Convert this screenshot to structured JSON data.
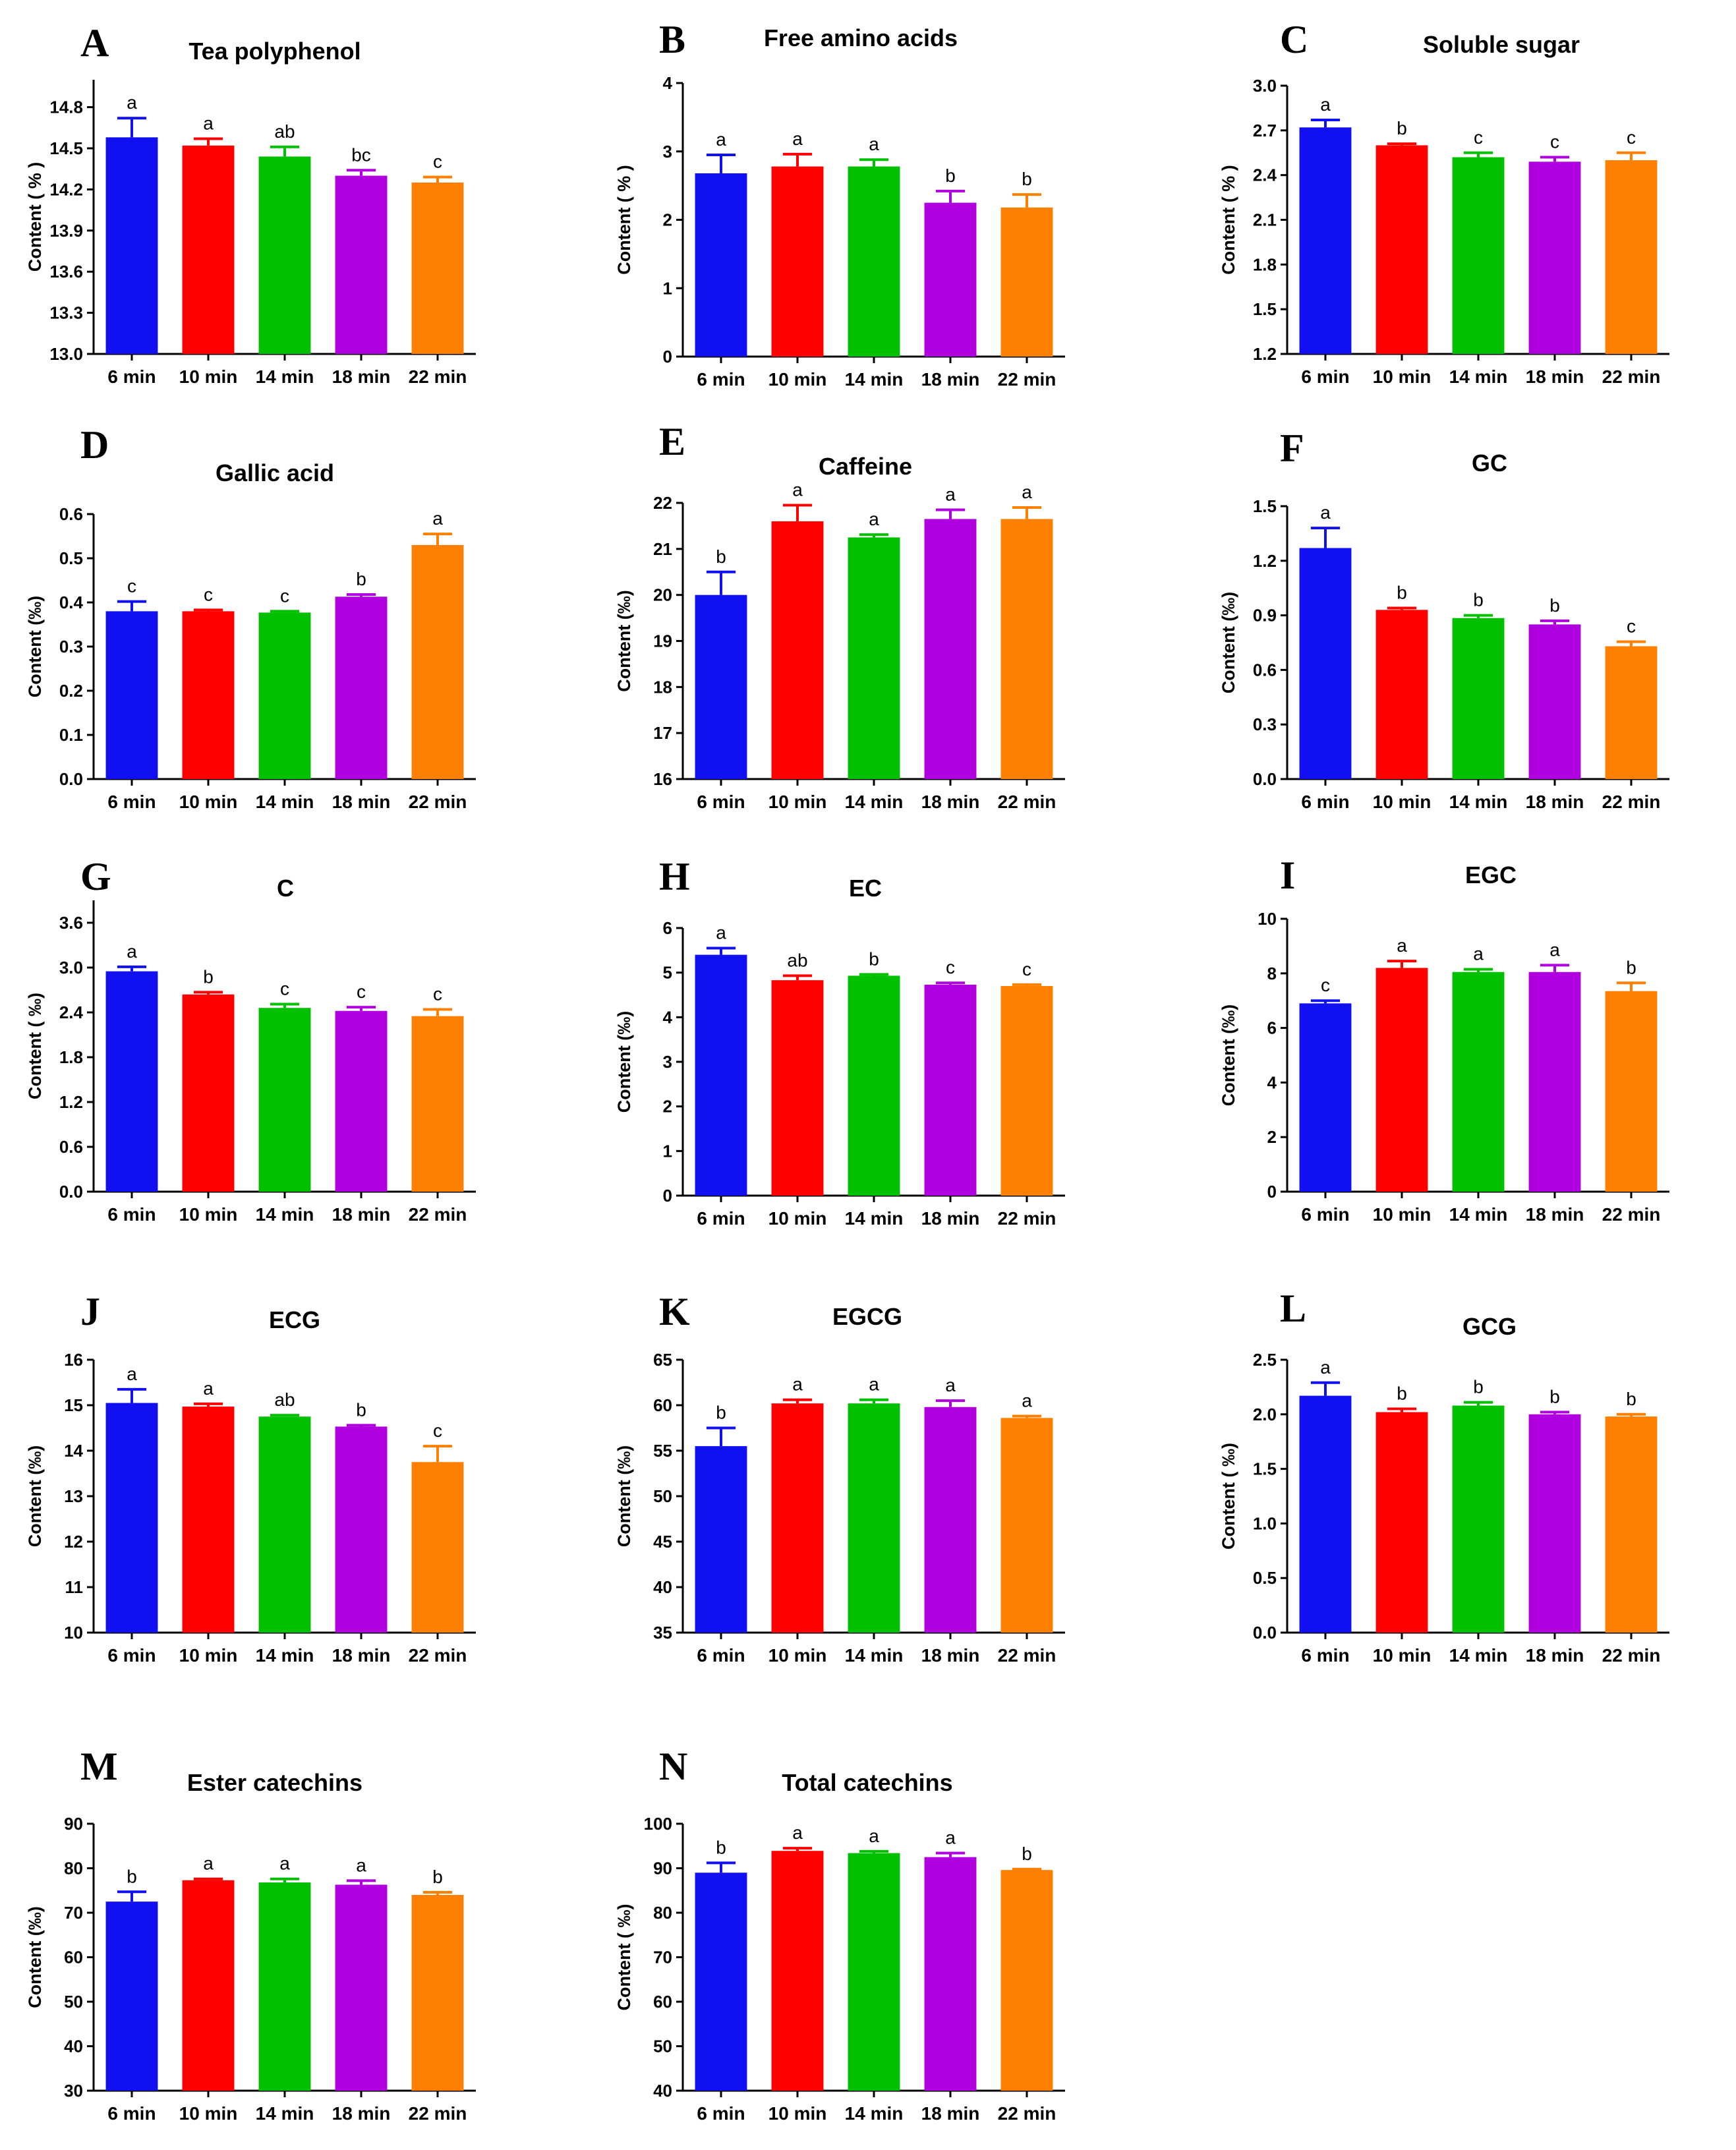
{
  "figure": {
    "categories": [
      "6 min",
      "10 min",
      "14 min",
      "18 min",
      "22 min"
    ],
    "colors": [
      "#1010f0",
      "#ff0000",
      "#00c000",
      "#b000e0",
      "#ff8000"
    ]
  },
  "chart_data": [
    {
      "id": "A",
      "letter": "A",
      "type": "bar",
      "title": "Tea polyphenol",
      "ylabel": "Content ( % )",
      "ylim": [
        13.0,
        15.0
      ],
      "yticks": [
        "13.0",
        "13.3",
        "13.6",
        "13.9",
        "14.2",
        "14.5",
        "14.8"
      ],
      "values": [
        14.58,
        14.52,
        14.44,
        14.3,
        14.25
      ],
      "errors": [
        0.14,
        0.05,
        0.07,
        0.04,
        0.04
      ],
      "significance": [
        "a",
        "a",
        "ab",
        "bc",
        "c"
      ]
    },
    {
      "id": "B",
      "letter": "B",
      "type": "bar",
      "title": "Free amino acids",
      "ylabel": "Content ( % )",
      "ylim": [
        0,
        4
      ],
      "yticks": [
        "0",
        "1",
        "2",
        "3",
        "4"
      ],
      "values": [
        2.68,
        2.78,
        2.78,
        2.25,
        2.18
      ],
      "errors": [
        0.27,
        0.18,
        0.1,
        0.17,
        0.19
      ],
      "significance": [
        "a",
        "a",
        "a",
        "b",
        "b"
      ]
    },
    {
      "id": "C",
      "letter": "C",
      "type": "bar",
      "title": "Soluble sugar",
      "ylabel": "Content ( % )",
      "ylim": [
        1.2,
        3.0
      ],
      "yticks": [
        "1.2",
        "1.5",
        "1.8",
        "2.1",
        "2.4",
        "2.7",
        "3.0"
      ],
      "values": [
        2.72,
        2.6,
        2.52,
        2.49,
        2.5
      ],
      "errors": [
        0.05,
        0.01,
        0.03,
        0.03,
        0.05
      ],
      "significance": [
        "a",
        "b",
        "c",
        "c",
        "c"
      ]
    },
    {
      "id": "D",
      "letter": "D",
      "type": "bar",
      "title": "Gallic acid",
      "ylabel": "Content (‰)",
      "ylim": [
        0.0,
        0.6
      ],
      "yticks": [
        "0.0",
        "0.1",
        "0.2",
        "0.3",
        "0.4",
        "0.5",
        "0.6"
      ],
      "values": [
        0.38,
        0.38,
        0.377,
        0.413,
        0.53
      ],
      "errors": [
        0.022,
        0.003,
        0.003,
        0.005,
        0.025
      ],
      "significance": [
        "c",
        "c",
        "c",
        "b",
        "a"
      ]
    },
    {
      "id": "E",
      "letter": "E",
      "type": "bar",
      "title": "Caffeine",
      "ylabel": "Content (‰)",
      "ylim": [
        16,
        22
      ],
      "yticks": [
        "16",
        "17",
        "18",
        "19",
        "20",
        "21",
        "22"
      ],
      "values": [
        20.0,
        21.6,
        21.25,
        21.65,
        21.65
      ],
      "errors": [
        0.5,
        0.35,
        0.06,
        0.2,
        0.25
      ],
      "significance": [
        "b",
        "a",
        "a",
        "a",
        "a"
      ]
    },
    {
      "id": "F",
      "letter": "F",
      "type": "bar",
      "title": "GC",
      "ylabel": "Content (‰)",
      "ylim": [
        0.0,
        1.5
      ],
      "yticks": [
        "0.0",
        "0.3",
        "0.6",
        "0.9",
        "1.2",
        "1.5"
      ],
      "values": [
        1.27,
        0.93,
        0.885,
        0.85,
        0.73
      ],
      "errors": [
        0.11,
        0.01,
        0.015,
        0.02,
        0.025
      ],
      "significance": [
        "a",
        "b",
        "b",
        "b",
        "c"
      ]
    },
    {
      "id": "G",
      "letter": "G",
      "type": "bar",
      "title": "C",
      "ylabel": "Content ( ‰)",
      "ylim": [
        0.0,
        3.9
      ],
      "yticks": [
        "0.0",
        "0.6",
        "1.2",
        "1.8",
        "2.4",
        "3.0",
        "3.6"
      ],
      "values": [
        2.95,
        2.64,
        2.46,
        2.42,
        2.35
      ],
      "errors": [
        0.06,
        0.03,
        0.05,
        0.05,
        0.09
      ],
      "significance": [
        "a",
        "b",
        "c",
        "c",
        "c"
      ]
    },
    {
      "id": "H",
      "letter": "H",
      "type": "bar",
      "title": "EC",
      "ylabel": "Content (‰)",
      "ylim": [
        0,
        6
      ],
      "yticks": [
        "0",
        "1",
        "2",
        "3",
        "4",
        "5",
        "6"
      ],
      "values": [
        5.4,
        4.83,
        4.93,
        4.73,
        4.7
      ],
      "errors": [
        0.15,
        0.1,
        0.03,
        0.04,
        0.03
      ],
      "significance": [
        "a",
        "ab",
        "b",
        "c",
        "c"
      ]
    },
    {
      "id": "I",
      "letter": "I",
      "type": "bar",
      "title": "EGC",
      "ylabel": "Content (‰)",
      "ylim": [
        0,
        10
      ],
      "yticks": [
        "0",
        "2",
        "4",
        "6",
        "8",
        "10"
      ],
      "values": [
        6.9,
        8.2,
        8.05,
        8.05,
        7.35
      ],
      "errors": [
        0.1,
        0.25,
        0.1,
        0.25,
        0.3
      ],
      "significance": [
        "c",
        "a",
        "a",
        "a",
        "b"
      ]
    },
    {
      "id": "J",
      "letter": "J",
      "type": "bar",
      "title": "ECG",
      "ylabel": "Content (‰)",
      "ylim": [
        10,
        16
      ],
      "yticks": [
        "10",
        "11",
        "12",
        "13",
        "14",
        "15",
        "16"
      ],
      "values": [
        15.05,
        14.97,
        14.75,
        14.53,
        13.75
      ],
      "errors": [
        0.3,
        0.06,
        0.03,
        0.03,
        0.35
      ],
      "significance": [
        "a",
        "a",
        "ab",
        "b",
        "c"
      ]
    },
    {
      "id": "K",
      "letter": "K",
      "type": "bar",
      "title": "EGCG",
      "ylabel": "Content (‰)",
      "ylim": [
        35,
        65
      ],
      "yticks": [
        "35",
        "40",
        "45",
        "50",
        "55",
        "60",
        "65"
      ],
      "values": [
        55.5,
        60.2,
        60.2,
        59.8,
        58.6
      ],
      "errors": [
        2.0,
        0.4,
        0.4,
        0.7,
        0.2
      ],
      "significance": [
        "b",
        "a",
        "a",
        "a",
        "a"
      ]
    },
    {
      "id": "L",
      "letter": "L",
      "type": "bar",
      "title": "GCG",
      "ylabel": "Content ( ‰)",
      "ylim": [
        0.0,
        2.5
      ],
      "yticks": [
        "0.0",
        "0.5",
        "1.0",
        "1.5",
        "2.0",
        "2.5"
      ],
      "values": [
        2.17,
        2.02,
        2.08,
        2.0,
        1.98
      ],
      "errors": [
        0.12,
        0.03,
        0.03,
        0.02,
        0.02
      ],
      "significance": [
        "a",
        "b",
        "b",
        "b",
        "b"
      ]
    },
    {
      "id": "M",
      "letter": "M",
      "type": "bar",
      "title": "Ester catechins",
      "ylabel": "Content (‰)",
      "ylim": [
        30,
        90
      ],
      "yticks": [
        "30",
        "40",
        "50",
        "60",
        "70",
        "80",
        "90"
      ],
      "values": [
        72.5,
        77.3,
        76.8,
        76.3,
        74.0
      ],
      "errors": [
        2.2,
        0.3,
        0.8,
        0.9,
        0.6
      ],
      "significance": [
        "b",
        "a",
        "a",
        "a",
        "b"
      ]
    },
    {
      "id": "N",
      "letter": "N",
      "type": "bar",
      "title": "Total catechins",
      "ylabel": "Content ( ‰)",
      "ylim": [
        40,
        100
      ],
      "yticks": [
        "40",
        "50",
        "60",
        "70",
        "80",
        "90",
        "100"
      ],
      "values": [
        89.0,
        93.9,
        93.4,
        92.5,
        89.6
      ],
      "errors": [
        2.2,
        0.6,
        0.4,
        0.9,
        0.2
      ],
      "significance": [
        "b",
        "a",
        "a",
        "a",
        "b"
      ]
    }
  ]
}
